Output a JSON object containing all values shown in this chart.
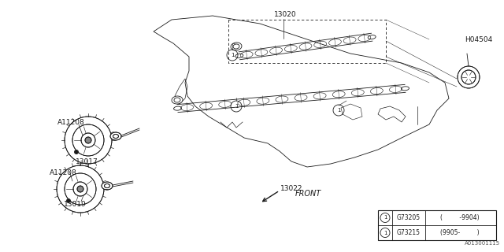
{
  "bg_color": "#ffffff",
  "line_color": "#1a1a1a",
  "fig_width": 6.4,
  "fig_height": 3.2,
  "dpi": 100,
  "watermark": "A013001115",
  "legend_rows": [
    {
      "code": "G73205",
      "range": "(          -9904)"
    },
    {
      "code": "G73215",
      "range": "(9905-          )"
    }
  ]
}
